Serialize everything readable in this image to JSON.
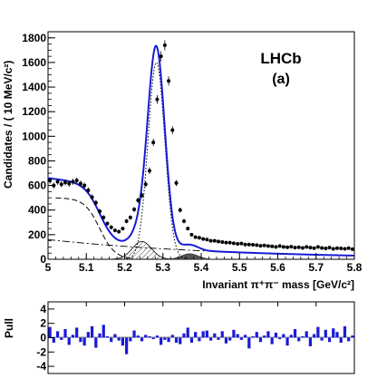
{
  "chart_data": [
    {
      "type": "scatter",
      "panel": "main",
      "ylabel": "Candidates / ( 10 MeV/c²)",
      "xlabel": "Invariant π⁺π⁻ mass [GeV/c²]",
      "annotation_experiment": "LHCb",
      "annotation_panel": "(a)",
      "xlim": [
        5.0,
        5.8
      ],
      "ylim": [
        0,
        1850
      ],
      "x_ticks": [
        5.0,
        5.1,
        5.2,
        5.3,
        5.4,
        5.5,
        5.6,
        5.7,
        5.8
      ],
      "x_tick_labels": [
        "5",
        "5.1",
        "5.2",
        "5.3",
        "5.4",
        "5.5",
        "5.6",
        "5.7",
        "5.8"
      ],
      "y_ticks": [
        0,
        200,
        400,
        600,
        800,
        1000,
        1200,
        1400,
        1600,
        1800
      ],
      "y_tick_labels": [
        "0",
        "200",
        "400",
        "600",
        "800",
        "1000",
        "1200",
        "1400",
        "1600",
        "1800"
      ],
      "data_points": {
        "x": [
          5.005,
          5.015,
          5.025,
          5.035,
          5.045,
          5.055,
          5.065,
          5.075,
          5.085,
          5.095,
          5.105,
          5.115,
          5.125,
          5.135,
          5.145,
          5.155,
          5.165,
          5.175,
          5.185,
          5.195,
          5.205,
          5.215,
          5.225,
          5.235,
          5.245,
          5.255,
          5.265,
          5.275,
          5.285,
          5.295,
          5.305,
          5.315,
          5.325,
          5.335,
          5.345,
          5.355,
          5.365,
          5.375,
          5.385,
          5.395,
          5.405,
          5.415,
          5.425,
          5.435,
          5.445,
          5.455,
          5.465,
          5.475,
          5.485,
          5.495,
          5.505,
          5.515,
          5.525,
          5.535,
          5.545,
          5.555,
          5.565,
          5.575,
          5.585,
          5.595,
          5.605,
          5.615,
          5.625,
          5.635,
          5.645,
          5.655,
          5.665,
          5.675,
          5.685,
          5.695,
          5.705,
          5.715,
          5.725,
          5.735,
          5.745,
          5.755,
          5.765,
          5.775,
          5.785,
          5.795
        ],
        "y": [
          640,
          600,
          630,
          610,
          625,
          615,
          630,
          640,
          615,
          600,
          560,
          505,
          460,
          390,
          340,
          290,
          260,
          235,
          225,
          250,
          310,
          340,
          405,
          480,
          520,
          610,
          720,
          950,
          1300,
          1650,
          1740,
          1450,
          1050,
          620,
          400,
          310,
          250,
          200,
          180,
          175,
          165,
          160,
          150,
          150,
          145,
          140,
          135,
          135,
          130,
          125,
          128,
          120,
          120,
          118,
          115,
          110,
          112,
          108,
          105,
          100,
          108,
          100,
          98,
          102,
          95,
          98,
          92,
          100,
          95,
          90,
          100,
          92,
          88,
          95,
          85,
          90,
          88,
          85,
          90,
          82
        ]
      },
      "curves": [
        {
          "name": "total fit",
          "style": "solid blue"
        },
        {
          "name": "signal",
          "style": "dotted black"
        },
        {
          "name": "partially reconstructed background",
          "style": "dashed black"
        },
        {
          "name": "combinatorial background",
          "style": "dash-dot black"
        },
        {
          "name": "misidentified background",
          "style": "hatched grey"
        },
        {
          "name": "other background",
          "style": "solid filled dark grey"
        }
      ]
    },
    {
      "type": "bar",
      "panel": "pull",
      "ylabel": "Pull",
      "xlim": [
        5.0,
        5.8
      ],
      "ylim": [
        -5,
        5
      ],
      "y_ticks": [
        -4,
        -2,
        0,
        2,
        4
      ],
      "y_tick_labels": [
        "-4",
        "-2",
        "0",
        "2",
        "4"
      ],
      "x": [
        5.005,
        5.015,
        5.025,
        5.035,
        5.045,
        5.055,
        5.065,
        5.075,
        5.085,
        5.095,
        5.105,
        5.115,
        5.125,
        5.135,
        5.145,
        5.155,
        5.165,
        5.175,
        5.185,
        5.195,
        5.205,
        5.215,
        5.225,
        5.235,
        5.245,
        5.255,
        5.265,
        5.275,
        5.285,
        5.295,
        5.305,
        5.315,
        5.325,
        5.335,
        5.345,
        5.355,
        5.365,
        5.375,
        5.385,
        5.395,
        5.405,
        5.415,
        5.425,
        5.435,
        5.445,
        5.455,
        5.465,
        5.475,
        5.485,
        5.495,
        5.505,
        5.515,
        5.525,
        5.535,
        5.545,
        5.555,
        5.565,
        5.575,
        5.585,
        5.595,
        5.605,
        5.615,
        5.625,
        5.635,
        5.645,
        5.655,
        5.665,
        5.675,
        5.685,
        5.695,
        5.705,
        5.715,
        5.725,
        5.735,
        5.745,
        5.755,
        5.765,
        5.775,
        5.785,
        5.795
      ],
      "values": [
        1.5,
        -0.7,
        0.9,
        -0.3,
        1.2,
        -1.0,
        0.4,
        1.4,
        -0.6,
        -1.1,
        0.8,
        1.6,
        -1.4,
        0.6,
        1.8,
        0.2,
        -0.6,
        0.5,
        -0.4,
        -1.1,
        -2.3,
        -0.5,
        1.0,
        0.3,
        -0.5,
        0.4,
        0.2,
        -0.2,
        0.3,
        -1.0,
        -0.3,
        -0.6,
        0.4,
        -0.7,
        -0.9,
        0.6,
        1.4,
        -0.7,
        0.8,
        -0.5,
        0.9,
        1.0,
        -0.4,
        0.6,
        -0.3,
        0.9,
        -0.8,
        -0.4,
        1.1,
        0.5,
        -0.3,
        0.4,
        -1.5,
        0.2,
        0.8,
        -0.6,
        0.3,
        0.9,
        -0.9,
        0.7,
        -0.2,
        0.5,
        -1.1,
        0.4,
        1.2,
        -0.5,
        0.2,
        0.9,
        -1.2,
        0.5,
        1.5,
        -0.4,
        1.1,
        -0.6,
        1.3,
        0.8,
        -0.7,
        1.6,
        -0.5,
        0.3
      ]
    }
  ]
}
